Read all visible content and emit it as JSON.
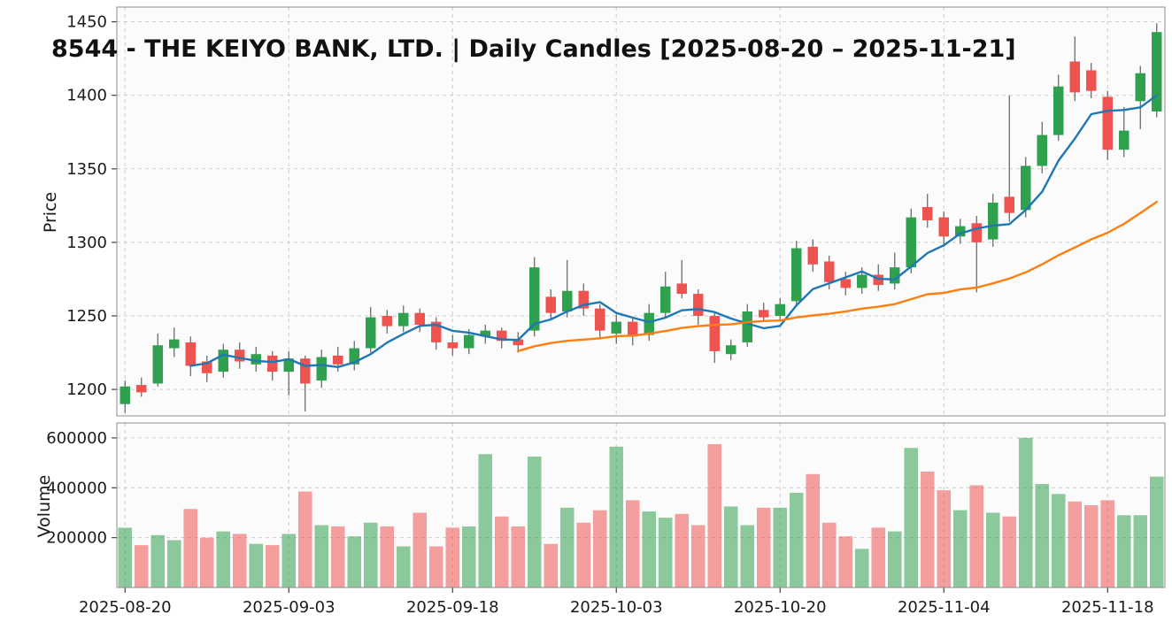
{
  "colors": {
    "up": "#2fa14e",
    "down": "#ef5350",
    "wick": "#616161",
    "grid": "#cccccc",
    "panel_bg": "#fbfbfb",
    "spine": "#8c8c8c",
    "tick": "#444444",
    "text": "#1a1a1a",
    "ma_fast": "#1f77b4",
    "ma_slow": "#ff7f0e"
  },
  "chart_data": {
    "type": "candlestick",
    "title": "8544 - THE KEIYO BANK, LTD. | Daily Candles [2025-08-20 – 2025-11-21]",
    "ylabel": "Price",
    "volume_ylabel": "Volume",
    "xlabel": "",
    "grid": true,
    "ylim": [
      1182,
      1460
    ],
    "volume_ylim": [
      0,
      660000
    ],
    "price_ticks": [
      1200,
      1250,
      1300,
      1350,
      1400,
      1450
    ],
    "volume_ticks": [
      200000,
      400000,
      600000
    ],
    "x_ticks": [
      "2025-08-20",
      "2025-09-03",
      "2025-09-18",
      "2025-10-03",
      "2025-10-20",
      "2025-11-04",
      "2025-11-18"
    ],
    "overlays": [
      {
        "name": "MA5",
        "period": 5,
        "color": "#1f77b4"
      },
      {
        "name": "MA25",
        "period": 25,
        "color": "#ff7f0e"
      }
    ],
    "dates": [
      "2025-08-20",
      "2025-08-21",
      "2025-08-22",
      "2025-08-25",
      "2025-08-26",
      "2025-08-27",
      "2025-08-28",
      "2025-08-29",
      "2025-09-01",
      "2025-09-02",
      "2025-09-03",
      "2025-09-04",
      "2025-09-05",
      "2025-09-08",
      "2025-09-09",
      "2025-09-10",
      "2025-09-11",
      "2025-09-12",
      "2025-09-16",
      "2025-09-17",
      "2025-09-18",
      "2025-09-19",
      "2025-09-22",
      "2025-09-24",
      "2025-09-25",
      "2025-09-26",
      "2025-09-29",
      "2025-09-30",
      "2025-10-01",
      "2025-10-02",
      "2025-10-03",
      "2025-10-06",
      "2025-10-07",
      "2025-10-08",
      "2025-10-09",
      "2025-10-10",
      "2025-10-14",
      "2025-10-15",
      "2025-10-16",
      "2025-10-17",
      "2025-10-20",
      "2025-10-21",
      "2025-10-22",
      "2025-10-23",
      "2025-10-24",
      "2025-10-27",
      "2025-10-28",
      "2025-10-29",
      "2025-10-30",
      "2025-10-31",
      "2025-11-04",
      "2025-11-05",
      "2025-11-06",
      "2025-11-07",
      "2025-11-10",
      "2025-11-11",
      "2025-11-12",
      "2025-11-13",
      "2025-11-14",
      "2025-11-17",
      "2025-11-18",
      "2025-11-19",
      "2025-11-20",
      "2025-11-21"
    ],
    "open": [
      1190,
      1203,
      1204,
      1228,
      1232,
      1219,
      1212,
      1227,
      1217,
      1223,
      1212,
      1221,
      1206,
      1223,
      1217,
      1228,
      1250,
      1243,
      1252,
      1246,
      1232,
      1228,
      1236,
      1240,
      1234,
      1240,
      1263,
      1253,
      1267,
      1255,
      1238,
      1246,
      1237,
      1252,
      1272,
      1265,
      1250,
      1224,
      1232,
      1254,
      1250,
      1260,
      1297,
      1287,
      1275,
      1269,
      1278,
      1272,
      1283,
      1324,
      1317,
      1304,
      1313,
      1302,
      1331,
      1322,
      1352,
      1373,
      1423,
      1417,
      1399,
      1363,
      1396,
      1389
    ],
    "high": [
      1206,
      1208,
      1238,
      1242,
      1236,
      1223,
      1231,
      1232,
      1229,
      1226,
      1226,
      1223,
      1227,
      1229,
      1233,
      1256,
      1254,
      1257,
      1255,
      1249,
      1237,
      1241,
      1244,
      1242,
      1239,
      1290,
      1268,
      1288,
      1272,
      1258,
      1251,
      1249,
      1258,
      1280,
      1288,
      1268,
      1252,
      1234,
      1258,
      1259,
      1262,
      1301,
      1302,
      1291,
      1280,
      1283,
      1285,
      1293,
      1323,
      1333,
      1321,
      1316,
      1318,
      1333,
      1400,
      1358,
      1382,
      1414,
      1440,
      1422,
      1403,
      1392,
      1420,
      1449
    ],
    "low": [
      1184,
      1195,
      1202,
      1222,
      1209,
      1205,
      1208,
      1214,
      1212,
      1206,
      1196,
      1185,
      1201,
      1212,
      1213,
      1225,
      1238,
      1239,
      1239,
      1227,
      1223,
      1224,
      1231,
      1228,
      1225,
      1236,
      1247,
      1249,
      1250,
      1234,
      1231,
      1230,
      1233,
      1248,
      1262,
      1244,
      1218,
      1220,
      1229,
      1246,
      1247,
      1256,
      1280,
      1268,
      1264,
      1265,
      1267,
      1268,
      1279,
      1310,
      1297,
      1299,
      1266,
      1297,
      1314,
      1317,
      1347,
      1369,
      1396,
      1398,
      1356,
      1358,
      1377,
      1385
    ],
    "close": [
      1202,
      1198,
      1230,
      1234,
      1216,
      1211,
      1227,
      1219,
      1224,
      1212,
      1221,
      1204,
      1222,
      1217,
      1228,
      1249,
      1243,
      1252,
      1244,
      1232,
      1228,
      1237,
      1240,
      1233,
      1230,
      1283,
      1252,
      1267,
      1255,
      1240,
      1246,
      1236,
      1252,
      1270,
      1265,
      1250,
      1226,
      1230,
      1253,
      1249,
      1258,
      1296,
      1285,
      1273,
      1269,
      1278,
      1271,
      1283,
      1317,
      1315,
      1304,
      1311,
      1300,
      1327,
      1320,
      1352,
      1373,
      1406,
      1402,
      1403,
      1363,
      1376,
      1415,
      1443
    ],
    "volume": [
      240000,
      170000,
      210000,
      190000,
      315000,
      200000,
      225000,
      215000,
      175000,
      170000,
      215000,
      385000,
      250000,
      245000,
      205000,
      260000,
      245000,
      165000,
      300000,
      165000,
      240000,
      245000,
      535000,
      285000,
      245000,
      525000,
      175000,
      320000,
      260000,
      310000,
      565000,
      350000,
      305000,
      280000,
      295000,
      250000,
      575000,
      325000,
      250000,
      320000,
      320000,
      380000,
      455000,
      260000,
      205000,
      155000,
      240000,
      225000,
      560000,
      465000,
      390000,
      310000,
      410000,
      300000,
      285000,
      600000,
      415000,
      375000,
      345000,
      330000,
      350000,
      290000,
      290000,
      445000
    ]
  }
}
